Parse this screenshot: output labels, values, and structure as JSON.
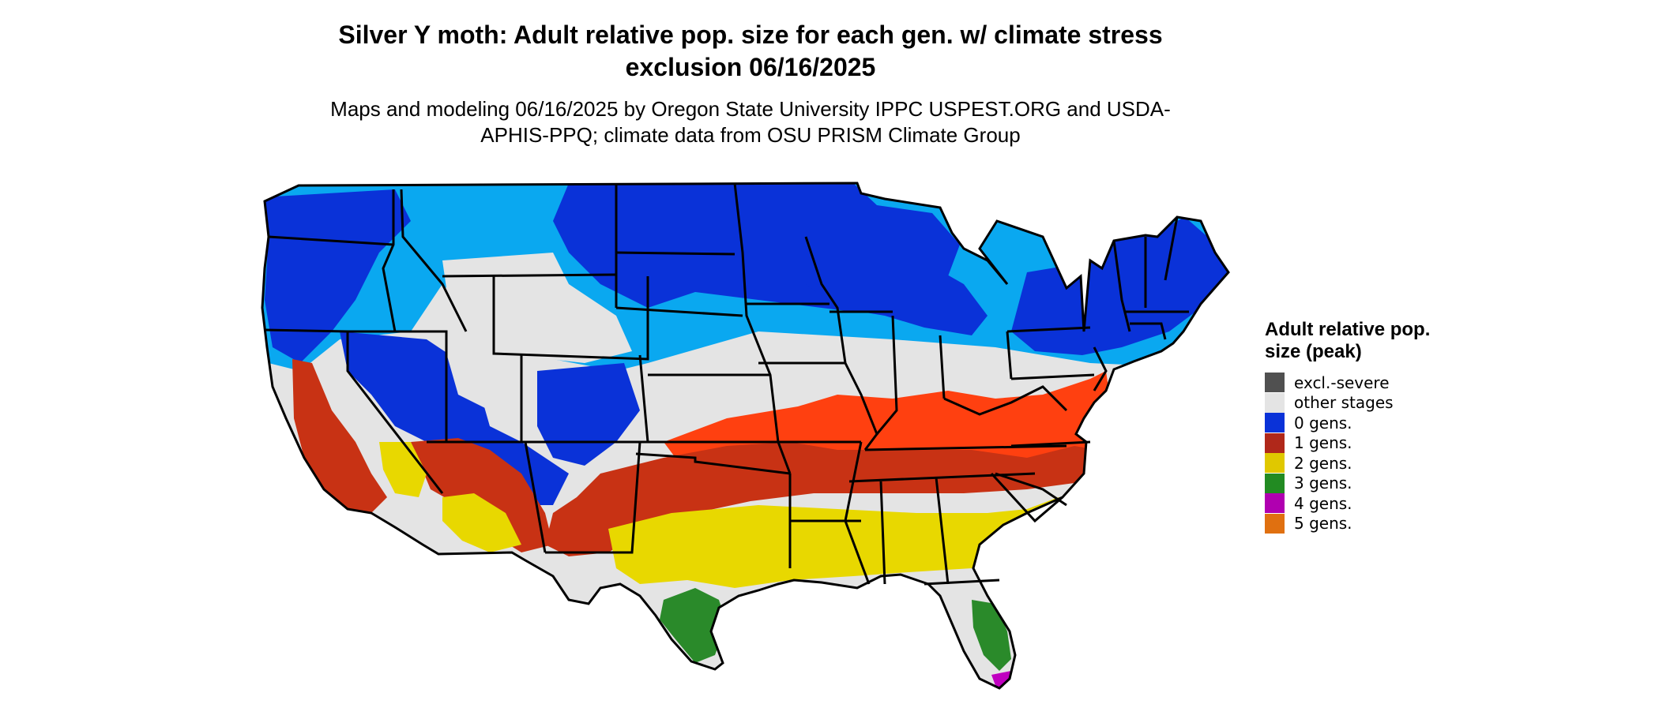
{
  "title": "Silver Y moth: Adult relative pop. size for each gen. w/ climate stress exclusion 06/16/2025",
  "subtitle": "Maps and modeling 06/16/2025 by Oregon State University IPPC USPEST.ORG and USDA-APHIS-PPQ; climate data from OSU PRISM Climate Group",
  "legend": {
    "title": "Adult relative pop. size (peak)",
    "items": [
      {
        "label": "excl.-severe",
        "color": "#505050"
      },
      {
        "label": "other stages",
        "color": "#e4e4e4"
      },
      {
        "label": "0 gens.",
        "color": "#0a32d8"
      },
      {
        "label": "1 gens.",
        "color": "#b0281a"
      },
      {
        "label": "2 gens.",
        "color": "#e0c800"
      },
      {
        "label": "3 gens.",
        "color": "#228b22"
      },
      {
        "label": "4 gens.",
        "color": "#b000b0"
      },
      {
        "label": "5 gens.",
        "color": "#e07010"
      }
    ]
  },
  "map_colors": {
    "dark_blue": "#0a32d8",
    "light_blue": "#0aa8f0",
    "red": "#c83214",
    "orange_red": "#ff4010",
    "yellow": "#e8d800",
    "green": "#2a8a2a",
    "magenta": "#c000c0",
    "gray": "#e4e4e4",
    "state_border": "#000000"
  }
}
